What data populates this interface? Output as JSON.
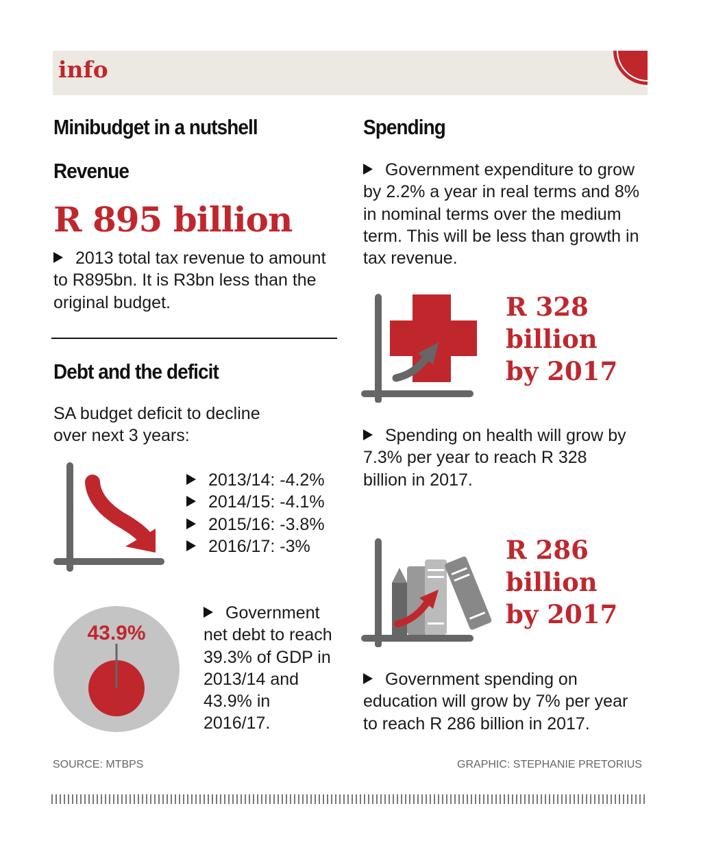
{
  "header": {
    "tag": "info"
  },
  "left": {
    "title": "Minibudget in a nutshell",
    "revenue": {
      "heading": "Revenue",
      "amount": "R 895 billion",
      "text": "2013 total tax revenue to amount to R895bn. It is R3bn less than the original budget."
    },
    "debt": {
      "heading": "Debt and the deficit",
      "intro": "SA budget deficit to decline over next 3 years:",
      "items": [
        "2013/14: -4.2%",
        "2014/15: -4.1%",
        "2015/16: -3.8%",
        "2016/17: -3%"
      ],
      "pie_label": "43.9%",
      "pie_value_percent": 43.9,
      "debt_text": "Government net debt to reach 39.3% of GDP in 2013/14 and 43.9%  in 2016/17."
    }
  },
  "right": {
    "title": "Spending",
    "intro": "Government expenditure to grow by 2.2% a year in real terms and 8% in nominal terms over the medium term. This will be less than growth in tax revenue.",
    "health": {
      "line1": "R 328",
      "line2": "billion",
      "line3": "by 2017",
      "text": "Spending on health will grow by 7.3% per year to reach R 328 billion in 2017."
    },
    "education": {
      "line1": "R 286",
      "line2": "billion",
      "line3": "by 2017",
      "text": "Government spending on education will grow by 7% per year to reach R 286 billion in 2017."
    }
  },
  "footer": {
    "source": "SOURCE:  MTBPS",
    "credit": "GRAPHIC:  STEPHANIE PRETORIUS"
  },
  "colors": {
    "accent": "#c0272d",
    "gray": "#666666",
    "band": "#ebe9e1"
  }
}
